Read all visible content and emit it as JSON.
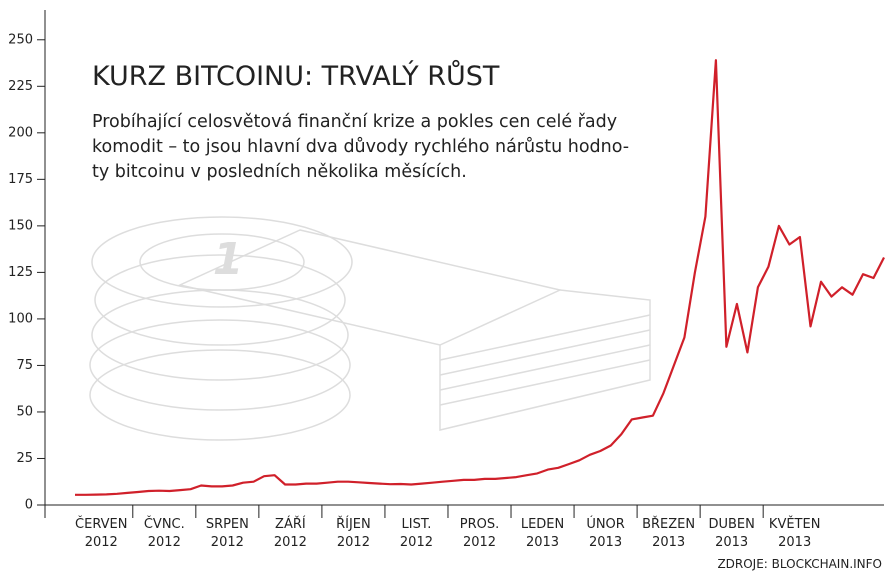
{
  "chart_data": {
    "type": "line",
    "title": "KURZ BITCOINU: TRVALÝ RŮST",
    "subtitle_lines": [
      "Probíhající celosvětová finanční krize a pokles cen celé řady",
      "komodit – to jsou hlavní dva důvody rychlého nárůstu hodno-",
      "ty bitcoinu v posledních několika měsících."
    ],
    "coin_label": "1",
    "source": "ZDROJE: BLOCKCHAIN.INFO",
    "categories": [
      null,
      null,
      "ČERVEN",
      null,
      null,
      null,
      null,
      null,
      "ČVNC.",
      null,
      null,
      null,
      null,
      null,
      "SRPEN",
      null,
      null,
      null,
      null,
      null,
      "ZÁŘÍ",
      null,
      null,
      null,
      null,
      null,
      "ŘÍJEN",
      null,
      null,
      null,
      null,
      null,
      "LIST.",
      null,
      null,
      null,
      null,
      null,
      "PROS.",
      null,
      null,
      null,
      null,
      null,
      "LEDEN",
      null,
      null,
      null,
      null,
      null,
      "ÚNOR",
      null,
      null,
      null,
      null,
      null,
      "BŘEZEN",
      null,
      null,
      null,
      null,
      null,
      "DUBEN",
      null,
      null,
      null,
      null,
      null,
      "KVĚTEN",
      null,
      null,
      null,
      null,
      null,
      null,
      null,
      null,
      null
    ],
    "category_years": [
      null,
      null,
      "2012",
      null,
      null,
      null,
      null,
      null,
      "2012",
      null,
      null,
      null,
      null,
      null,
      "2012",
      null,
      null,
      null,
      null,
      null,
      "2012",
      null,
      null,
      null,
      null,
      null,
      "2012",
      null,
      null,
      null,
      null,
      null,
      "2012",
      null,
      null,
      null,
      null,
      null,
      "2012",
      null,
      null,
      null,
      null,
      null,
      "2013",
      null,
      null,
      null,
      null,
      null,
      "2013",
      null,
      null,
      null,
      null,
      null,
      "2013",
      null,
      null,
      null,
      null,
      null,
      "2013",
      null,
      null,
      null,
      null,
      null,
      "2013",
      null,
      null,
      null,
      null,
      null,
      null,
      null,
      null,
      null
    ],
    "series": [
      {
        "color": "#d0202a",
        "values": [
          5.5,
          5.5,
          5.6,
          5.7,
          6,
          6.5,
          7,
          7.5,
          7.7,
          7.5,
          8,
          8.5,
          10.5,
          10,
          10,
          10.5,
          12,
          12.5,
          15.5,
          16,
          11,
          11,
          11.5,
          11.5,
          12,
          12.5,
          12.5,
          12.2,
          11.8,
          11.5,
          11.2,
          11.3,
          11,
          11.5,
          12,
          12.5,
          13,
          13.5,
          13.5,
          14,
          14,
          14.5,
          15,
          16,
          17,
          19,
          20,
          22,
          24,
          27,
          29,
          32,
          38,
          46,
          47,
          48,
          60,
          75,
          90,
          125,
          155,
          239,
          85,
          108,
          82,
          117,
          128,
          150,
          140,
          144,
          96,
          120,
          112,
          117,
          113,
          124,
          122,
          133
        ]
      }
    ],
    "ylim": [
      0,
      266
    ],
    "yticks": [
      0,
      25,
      50,
      75,
      100,
      125,
      150,
      175,
      200,
      225,
      250
    ],
    "grid": false
  }
}
